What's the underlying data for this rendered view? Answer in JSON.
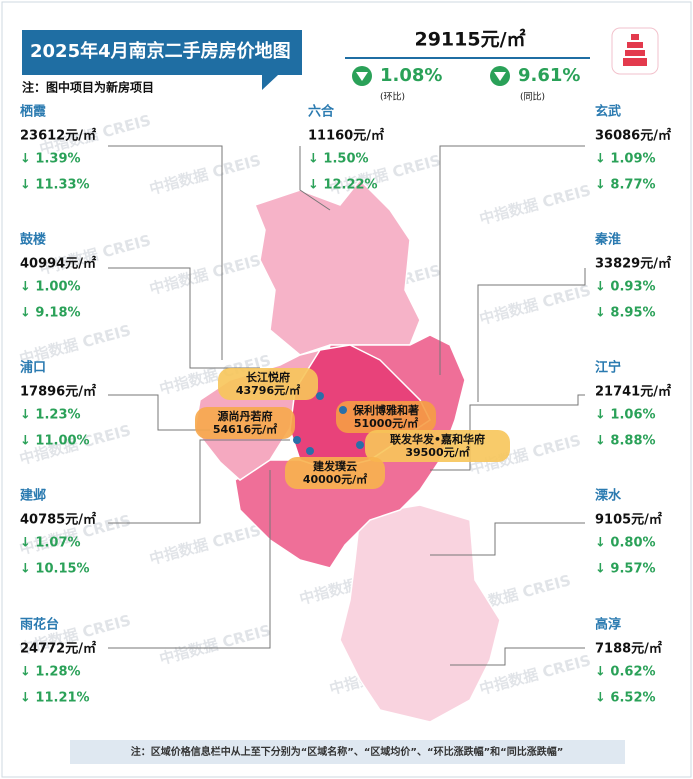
{
  "header": {
    "title": "2025年4月南京二手房房价地图",
    "note": "注：图中项目为新房项目"
  },
  "summary": {
    "price": "29115元/㎡",
    "mom": "1.08%",
    "mom_label": "(环比)",
    "yoy": "9.61%",
    "yoy_label": "(同比)"
  },
  "districts": [
    {
      "name": "栖霞",
      "price": "23612元/㎡",
      "mom": "↓ 1.39%",
      "yoy": "↓ 11.33%"
    },
    {
      "name": "鼓楼",
      "price": "40994元/㎡",
      "mom": "↓ 1.00%",
      "yoy": "↓ 9.18%"
    },
    {
      "name": "浦口",
      "price": "17896元/㎡",
      "mom": "↓ 1.23%",
      "yoy": "↓ 11.00%"
    },
    {
      "name": "建邺",
      "price": "40785元/㎡",
      "mom": "↓ 1.07%",
      "yoy": "↓ 10.15%"
    },
    {
      "name": "雨花台",
      "price": "24772元/㎡",
      "mom": "↓ 1.28%",
      "yoy": "↓ 11.21%"
    },
    {
      "name": "六合",
      "price": "11160元/㎡",
      "mom": "↓ 1.50%",
      "yoy": "↓ 12.22%"
    },
    {
      "name": "玄武",
      "price": "36086元/㎡",
      "mom": "↓ 1.09%",
      "yoy": "↓ 8.77%"
    },
    {
      "name": "秦淮",
      "price": "33829元/㎡",
      "mom": "↓ 0.93%",
      "yoy": "↓ 8.95%"
    },
    {
      "name": "江宁",
      "price": "21741元/㎡",
      "mom": "↓ 1.06%",
      "yoy": "↓ 8.88%"
    },
    {
      "name": "溧水",
      "price": "9105元/㎡",
      "mom": "↓ 0.80%",
      "yoy": "↓ 9.57%"
    },
    {
      "name": "高淳",
      "price": "7188元/㎡",
      "mom": "↓ 0.62%",
      "yoy": "↓ 6.52%"
    }
  ],
  "projects": [
    {
      "name": "长江悦府",
      "price": "43796元/㎡"
    },
    {
      "name": "源尚丹若府",
      "price": "54616元/㎡"
    },
    {
      "name": "保利博雅和著",
      "price": "51000元/㎡"
    },
    {
      "name": "联发华发•嘉和华府",
      "price": "39500元/㎡"
    },
    {
      "name": "建发璞云",
      "price": "40000元/㎡"
    }
  ],
  "watermark": "中指数据 CREIS",
  "footer": "注：区域价格信息栏中从上至下分别为“区域名称”、“区域均价”、“环比涨跌幅”和“同比涨跌幅”"
}
